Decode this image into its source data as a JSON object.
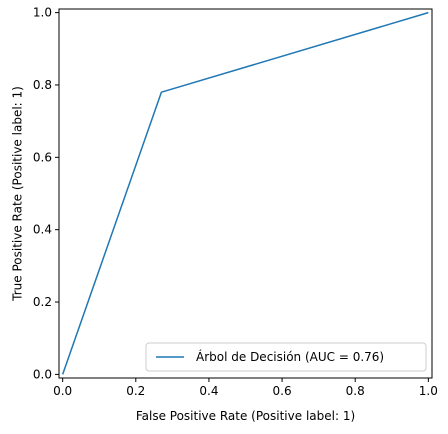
{
  "chart_data": {
    "type": "line",
    "xlabel": "False Positive Rate (Positive label: 1)",
    "ylabel": "True Positive Rate (Positive label: 1)",
    "xlim": [
      -0.01,
      1.01
    ],
    "ylim": [
      -0.01,
      1.01
    ],
    "xticks": [
      "0.0",
      "0.2",
      "0.4",
      "0.6",
      "0.8",
      "1.0"
    ],
    "yticks": [
      "0.0",
      "0.2",
      "0.4",
      "0.6",
      "0.8",
      "1.0"
    ],
    "grid": false,
    "legend_position": "lower-right",
    "series": [
      {
        "name": "Árbol de Decisión (AUC = 0.76)",
        "color": "#1f77b4",
        "x": [
          0.0,
          0.27,
          1.0
        ],
        "y": [
          0.0,
          0.78,
          1.0
        ]
      }
    ]
  }
}
